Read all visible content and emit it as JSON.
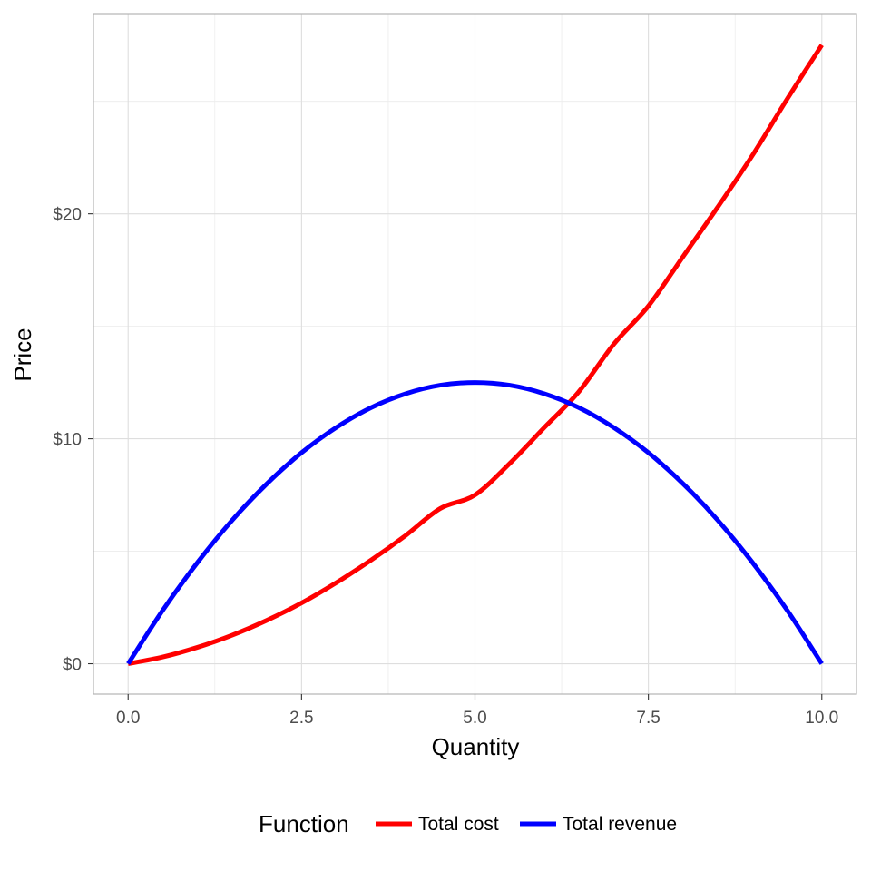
{
  "chart_data": {
    "type": "line",
    "xlabel": "Quantity",
    "ylabel": "Price",
    "xlim": [
      -0.5,
      10.5
    ],
    "ylim": [
      -1.35,
      28.9
    ],
    "x_ticks": [
      0,
      2.5,
      5,
      7.5,
      10
    ],
    "x_tick_labels": [
      "0.0",
      "2.5",
      "5.0",
      "7.5",
      "10.0"
    ],
    "y_ticks": [
      0,
      10,
      20
    ],
    "y_tick_labels": [
      "$0",
      "$10",
      "$20"
    ],
    "grid": true,
    "legend": {
      "title": "Function",
      "position": "bottom"
    },
    "x": [
      0,
      0.5,
      1,
      1.5,
      2,
      2.5,
      3,
      3.5,
      4,
      4.5,
      5,
      5.5,
      6,
      6.5,
      7,
      7.5,
      8,
      8.5,
      9,
      9.5,
      10
    ],
    "series": [
      {
        "name": "Total cost",
        "color": "#ff0000",
        "values": [
          0,
          0.3,
          0.73,
          1.27,
          1.93,
          2.7,
          3.6,
          4.6,
          5.7,
          6.9,
          7.5,
          8.9,
          10.5,
          12.1,
          14.2,
          15.9,
          18.1,
          20.3,
          22.6,
          25.1,
          27.5
        ]
      },
      {
        "name": "Total revenue",
        "color": "#0000ff",
        "values": [
          0,
          2.38,
          4.5,
          6.38,
          8.0,
          9.38,
          10.5,
          11.38,
          12.0,
          12.38,
          12.5,
          12.38,
          12.0,
          11.38,
          10.5,
          9.38,
          8.0,
          6.38,
          4.5,
          2.38,
          0
        ]
      }
    ]
  }
}
